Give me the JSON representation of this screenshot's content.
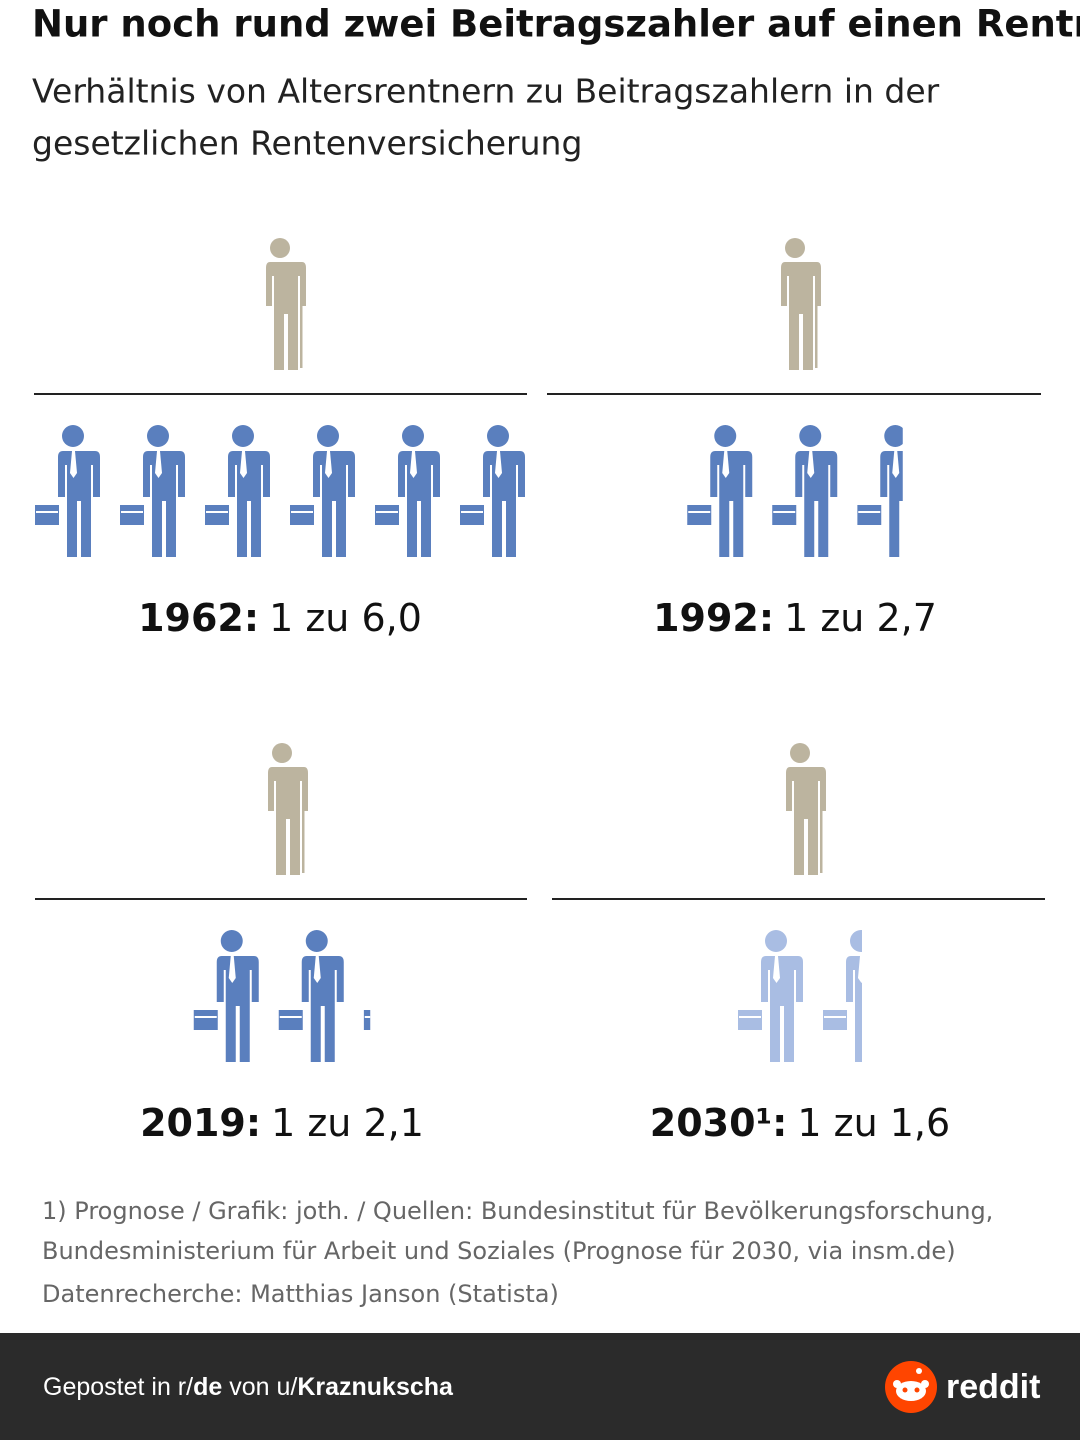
{
  "chart_data": {
    "type": "pictogram",
    "title": "Nur noch rund zwei Beitragszahler auf einen Rentner",
    "subtitle": [
      "Verhältnis von Altersrentnern zu Beitragszahlern in der",
      "gesetzlichen Rentenversicherung"
    ],
    "categories": [
      "1962:",
      "1992:",
      "2019:",
      "2030¹:"
    ],
    "values": [
      6.0,
      2.7,
      2.1,
      1.6
    ],
    "value_labels": [
      "1 zu 6,0",
      "1 zu 2,7",
      "1 zu 2,1",
      "1 zu 1,6"
    ],
    "colors": [
      "#5a7fbe",
      "#5a7fbe",
      "#5a7fbe",
      "#a9bde3"
    ],
    "retiree_color": "#bcb49f",
    "notes": [
      "1) Prognose / Grafik: joth. / Quellen: Bundesinstitut für Bevölkerungsforschung,",
      "Bundesministerium für Arbeit und Soziales (Prognose für 2030, via insm.de)",
      "Datenrecherche: Matthias Janson (Statista)"
    ]
  },
  "footer": {
    "prefix": "Gepostet in r/",
    "subreddit": "de",
    "middle": "von u/",
    "user": "Kraznukscha",
    "brand": "reddit"
  }
}
